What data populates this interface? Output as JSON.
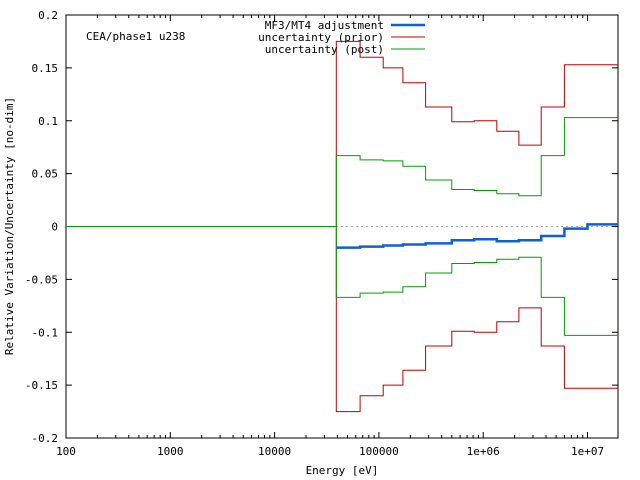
{
  "chart_data": {
    "type": "line",
    "title": "",
    "annotation": "CEA/phase1 u238",
    "xlabel": "Energy [eV]",
    "ylabel": "Relative Variation/Uncertainty [no-dim]",
    "xscale": "log",
    "xlim": [
      100,
      19600000
    ],
    "ylim": [
      -0.2,
      0.2
    ],
    "xticks": [
      {
        "value": 100,
        "label": "100"
      },
      {
        "value": 1000,
        "label": "1000"
      },
      {
        "value": 10000,
        "label": "10000"
      },
      {
        "value": 100000,
        "label": "100000"
      },
      {
        "value": 1000000,
        "label": "1e+06"
      },
      {
        "value": 10000000,
        "label": "1e+07"
      }
    ],
    "yticks": [
      {
        "value": 0.2,
        "label": "0.2"
      },
      {
        "value": 0.15,
        "label": "0.15"
      },
      {
        "value": 0.1,
        "label": "0.1"
      },
      {
        "value": 0.05,
        "label": "0.05"
      },
      {
        "value": 0,
        "label": "0"
      },
      {
        "value": -0.05,
        "label": "-0.05"
      },
      {
        "value": -0.1,
        "label": "-0.1"
      },
      {
        "value": -0.15,
        "label": "-0.15"
      },
      {
        "value": -0.2,
        "label": "-0.2"
      }
    ],
    "zero_line": {
      "style": "dotted",
      "color": "#a0a0a0"
    },
    "legend_position": "top-right",
    "bin_edges": [
      100,
      39000,
      66000,
      110000,
      170000,
      280000,
      500000,
      820000,
      1350000,
      2200000,
      3600000,
      6000000,
      10000000,
      19600000
    ],
    "series": [
      {
        "name": "MF3/MT4 adjustment",
        "color": "#1060d0",
        "width": 2.5,
        "style": "step",
        "start_bin": 1,
        "values": [
          -0.02,
          -0.019,
          -0.018,
          -0.017,
          -0.016,
          -0.013,
          -0.012,
          -0.014,
          -0.013,
          -0.009,
          -0.002,
          0.002
        ]
      },
      {
        "name": "uncertainty (prior)",
        "color": "#c00000",
        "width": 1,
        "style": "step",
        "symmetric": true,
        "start_bin": 0,
        "values": [
          0,
          0.175,
          0.16,
          0.15,
          0.136,
          0.113,
          0.099,
          0.1,
          0.09,
          0.077,
          0.113,
          0.153,
          0.153
        ]
      },
      {
        "name": "uncertainty (post)",
        "color": "#00a000",
        "width": 1,
        "style": "step",
        "symmetric": true,
        "start_bin": 0,
        "values": [
          0,
          0.067,
          0.063,
          0.062,
          0.057,
          0.044,
          0.035,
          0.034,
          0.031,
          0.029,
          0.067,
          0.103,
          0.103
        ]
      }
    ]
  }
}
